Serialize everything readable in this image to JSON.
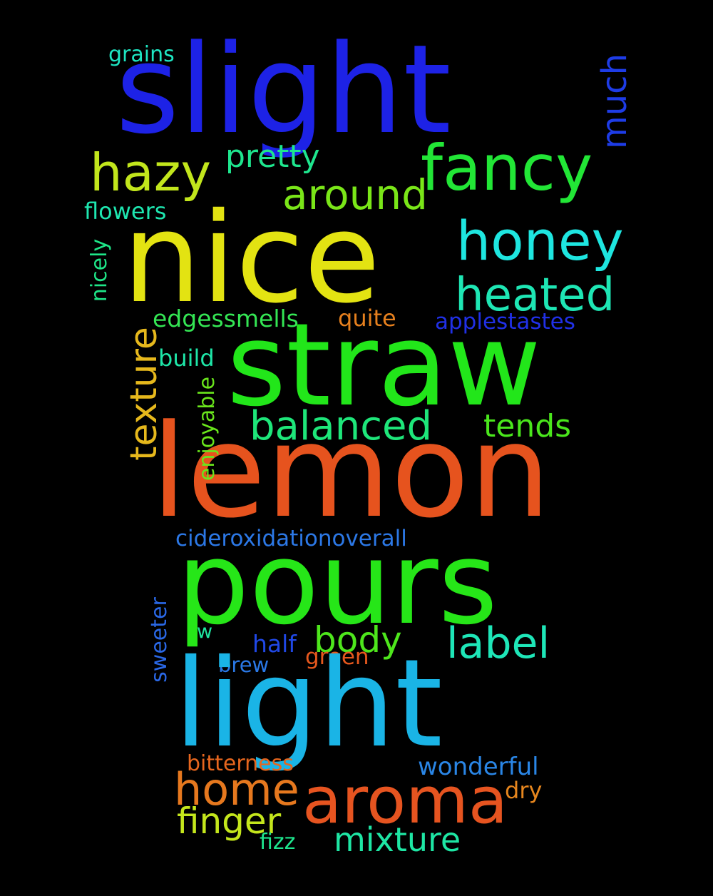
{
  "words": {
    "slight": {
      "text": "slight",
      "color": "#1d22e6"
    },
    "nice": {
      "text": "nice",
      "color": "#e3e312"
    },
    "straw": {
      "text": "straw",
      "color": "#22e61a"
    },
    "lemon": {
      "text": "lemon",
      "color": "#e6531e"
    },
    "pours": {
      "text": "pours",
      "color": "#26e618"
    },
    "light": {
      "text": "light",
      "color": "#1ab4e6"
    },
    "aroma": {
      "text": "aroma",
      "color": "#e65420"
    },
    "fancy": {
      "text": "fancy",
      "color": "#22e636"
    },
    "hazy": {
      "text": "hazy",
      "color": "#c2e61c"
    },
    "honey": {
      "text": "honey",
      "color": "#1ee6e0"
    },
    "heated": {
      "text": "heated",
      "color": "#1ee6b4"
    },
    "around": {
      "text": "around",
      "color": "#7ae618"
    },
    "pretty": {
      "text": "pretty",
      "color": "#1ee68e"
    },
    "balanced": {
      "text": "balanced",
      "color": "#1ee67a"
    },
    "tends": {
      "text": "tends",
      "color": "#4ae61c"
    },
    "label": {
      "text": "label",
      "color": "#1ee6b8"
    },
    "body": {
      "text": "body",
      "color": "#4ee61c"
    },
    "home": {
      "text": "home",
      "color": "#e6781e"
    },
    "finger": {
      "text": "finger",
      "color": "#c4e61c"
    },
    "mixture": {
      "text": "mixture",
      "color": "#1ee6a4"
    },
    "much": {
      "text": "much",
      "color": "#1e3ce6"
    },
    "texture": {
      "text": "texture",
      "color": "#e6b81c"
    },
    "grains": {
      "text": "grains",
      "color": "#1ee6c2"
    },
    "flowers": {
      "text": "flowers",
      "color": "#1ee6b0"
    },
    "nicely": {
      "text": "nicely",
      "color": "#1ee688"
    },
    "edgessmells": {
      "text": "edgessmells",
      "color": "#34e654"
    },
    "quite": {
      "text": "quite",
      "color": "#e6801e"
    },
    "applestastes": {
      "text": "applestastes",
      "color": "#2030e6"
    },
    "build": {
      "text": "build",
      "color": "#1ee6a8"
    },
    "enjoyable": {
      "text": "enjoyable",
      "color": "#6ae61c"
    },
    "cideroxidationoverall": {
      "text": "cideroxidationoverall",
      "color": "#2c78e6"
    },
    "sweeter": {
      "text": "sweeter",
      "color": "#2a68e6"
    },
    "w": {
      "text": "w",
      "color": "#1ee6a0"
    },
    "half": {
      "text": "half",
      "color": "#2048e6"
    },
    "brew": {
      "text": "brew",
      "color": "#2a78e6"
    },
    "green": {
      "text": "green",
      "color": "#e6581e"
    },
    "bitterness": {
      "text": "bitterness",
      "color": "#e6661e"
    },
    "wonderful": {
      "text": "wonderful",
      "color": "#2a86e6"
    },
    "dry": {
      "text": "dry",
      "color": "#e6861e"
    },
    "fizz": {
      "text": "fizz",
      "color": "#1ee68e"
    }
  },
  "background_color": "#000000"
}
